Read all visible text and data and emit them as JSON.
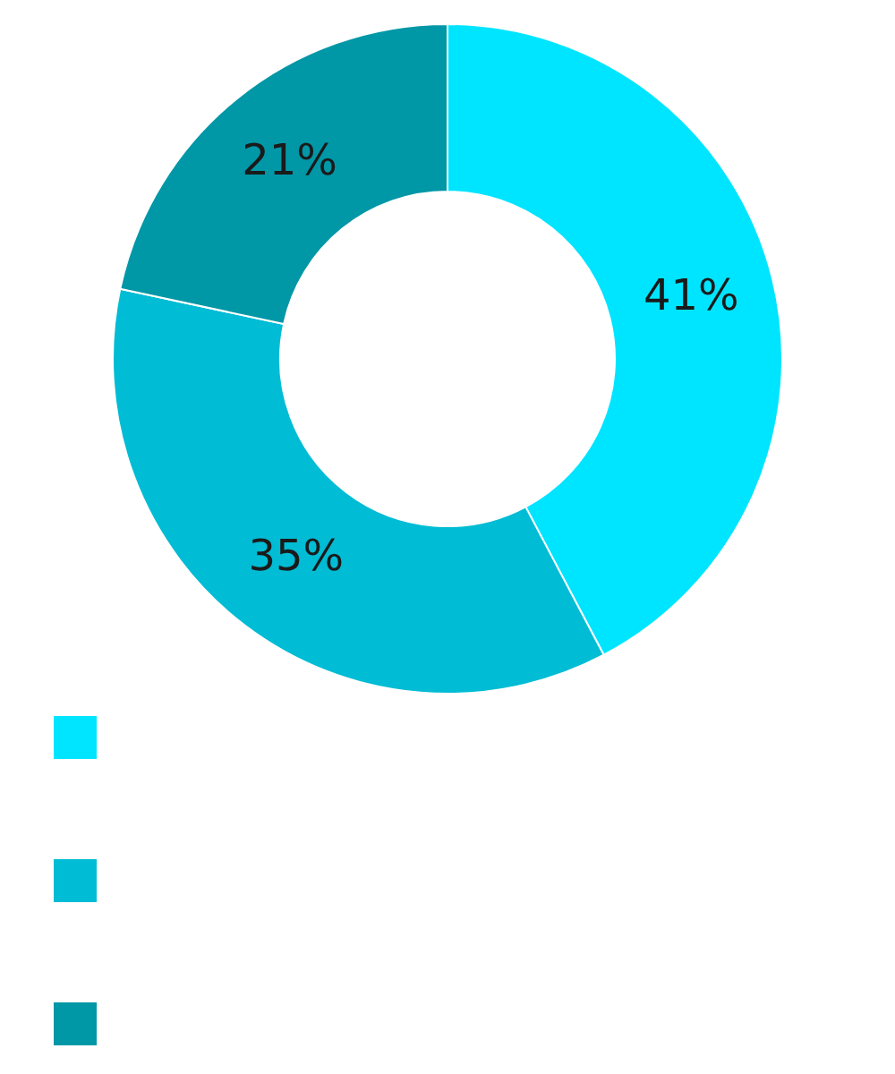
{
  "chart_data": {
    "type": "donut",
    "categories": [
      null,
      null,
      null
    ],
    "values": [
      41,
      35,
      21
    ],
    "colors": [
      "#00e5ff",
      "#00bcd4",
      "#0097a7"
    ],
    "value_labels": [
      "41%",
      "35%",
      "21%"
    ]
  }
}
